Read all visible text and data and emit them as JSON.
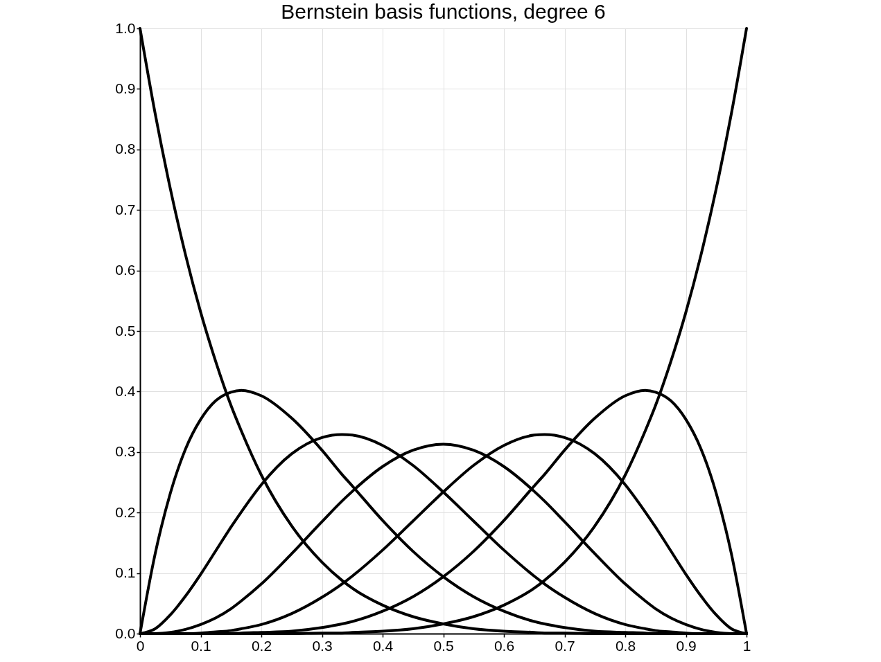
{
  "chart_data": {
    "type": "line",
    "title": "Bernstein basis functions, degree 6",
    "x": [
      0,
      0.025,
      0.05,
      0.075,
      0.1,
      0.125,
      0.15,
      0.167,
      0.2,
      0.25,
      0.3,
      0.333,
      0.35,
      0.4,
      0.45,
      0.5,
      0.55,
      0.6,
      0.65,
      0.667,
      0.7,
      0.75,
      0.8,
      0.833,
      0.85,
      0.875,
      0.9,
      0.925,
      0.95,
      0.975,
      1
    ],
    "series": [
      {
        "color": "#000000",
        "values": [
          1,
          0.859,
          0.735,
          0.626,
          0.531,
          0.449,
          0.377,
          0.335,
          0.262,
          0.178,
          0.118,
          0.088,
          0.075,
          0.047,
          0.028,
          0.016,
          0.008,
          0.004,
          0.002,
          0.001,
          0.001,
          0,
          0,
          0,
          0,
          0,
          0,
          0,
          0,
          0,
          0
        ]
      },
      {
        "color": "#000000",
        "values": [
          0,
          0.132,
          0.232,
          0.305,
          0.354,
          0.385,
          0.399,
          0.402,
          0.393,
          0.356,
          0.303,
          0.263,
          0.244,
          0.187,
          0.136,
          0.094,
          0.061,
          0.037,
          0.02,
          0.016,
          0.01,
          0.004,
          0.002,
          0.001,
          0,
          0,
          0,
          0,
          0,
          0,
          0
        ]
      },
      {
        "color": "#000000",
        "values": [
          0,
          0.008,
          0.031,
          0.062,
          0.098,
          0.137,
          0.176,
          0.201,
          0.246,
          0.297,
          0.324,
          0.329,
          0.328,
          0.311,
          0.278,
          0.234,
          0.186,
          0.138,
          0.095,
          0.082,
          0.06,
          0.033,
          0.015,
          0.008,
          0.005,
          0.003,
          0.001,
          0,
          0,
          0,
          0
        ]
      },
      {
        "color": "#000000",
        "values": [
          0,
          0,
          0.002,
          0.007,
          0.015,
          0.026,
          0.041,
          0.054,
          0.082,
          0.132,
          0.185,
          0.219,
          0.235,
          0.276,
          0.303,
          0.313,
          0.303,
          0.276,
          0.235,
          0.219,
          0.185,
          0.132,
          0.082,
          0.054,
          0.041,
          0.026,
          0.015,
          0.007,
          0.002,
          0,
          0
        ]
      },
      {
        "color": "#000000",
        "values": [
          0,
          0,
          0,
          0,
          0.001,
          0.003,
          0.005,
          0.008,
          0.015,
          0.033,
          0.06,
          0.082,
          0.095,
          0.138,
          0.186,
          0.234,
          0.278,
          0.311,
          0.328,
          0.329,
          0.324,
          0.297,
          0.246,
          0.201,
          0.176,
          0.137,
          0.098,
          0.062,
          0.031,
          0.008,
          0
        ]
      },
      {
        "color": "#000000",
        "values": [
          0,
          0,
          0,
          0,
          0,
          0,
          0,
          0.001,
          0.002,
          0.004,
          0.01,
          0.016,
          0.02,
          0.037,
          0.061,
          0.094,
          0.136,
          0.187,
          0.244,
          0.263,
          0.303,
          0.356,
          0.393,
          0.402,
          0.399,
          0.385,
          0.354,
          0.305,
          0.232,
          0.132,
          0
        ]
      },
      {
        "color": "#000000",
        "values": [
          0,
          0,
          0,
          0,
          0,
          0,
          0,
          0,
          0,
          0,
          0.001,
          0.001,
          0.002,
          0.004,
          0.008,
          0.016,
          0.028,
          0.047,
          0.075,
          0.088,
          0.118,
          0.178,
          0.262,
          0.335,
          0.377,
          0.449,
          0.531,
          0.626,
          0.735,
          0.859,
          1
        ]
      }
    ],
    "xlim": [
      0,
      1
    ],
    "ylim": [
      0,
      1
    ],
    "xticks": [
      0,
      0.1,
      0.2,
      0.3,
      0.4,
      0.5,
      0.6,
      0.7,
      0.8,
      0.9,
      1
    ],
    "yticks": [
      {
        "value": 0,
        "label": "0.0"
      },
      0.1,
      0.2,
      0.3,
      0.4,
      0.5,
      0.6,
      0.7,
      0.8,
      0.9,
      {
        "value": 1,
        "label": "1.0"
      }
    ],
    "grid": true,
    "legend": false,
    "line_style": "solid"
  }
}
